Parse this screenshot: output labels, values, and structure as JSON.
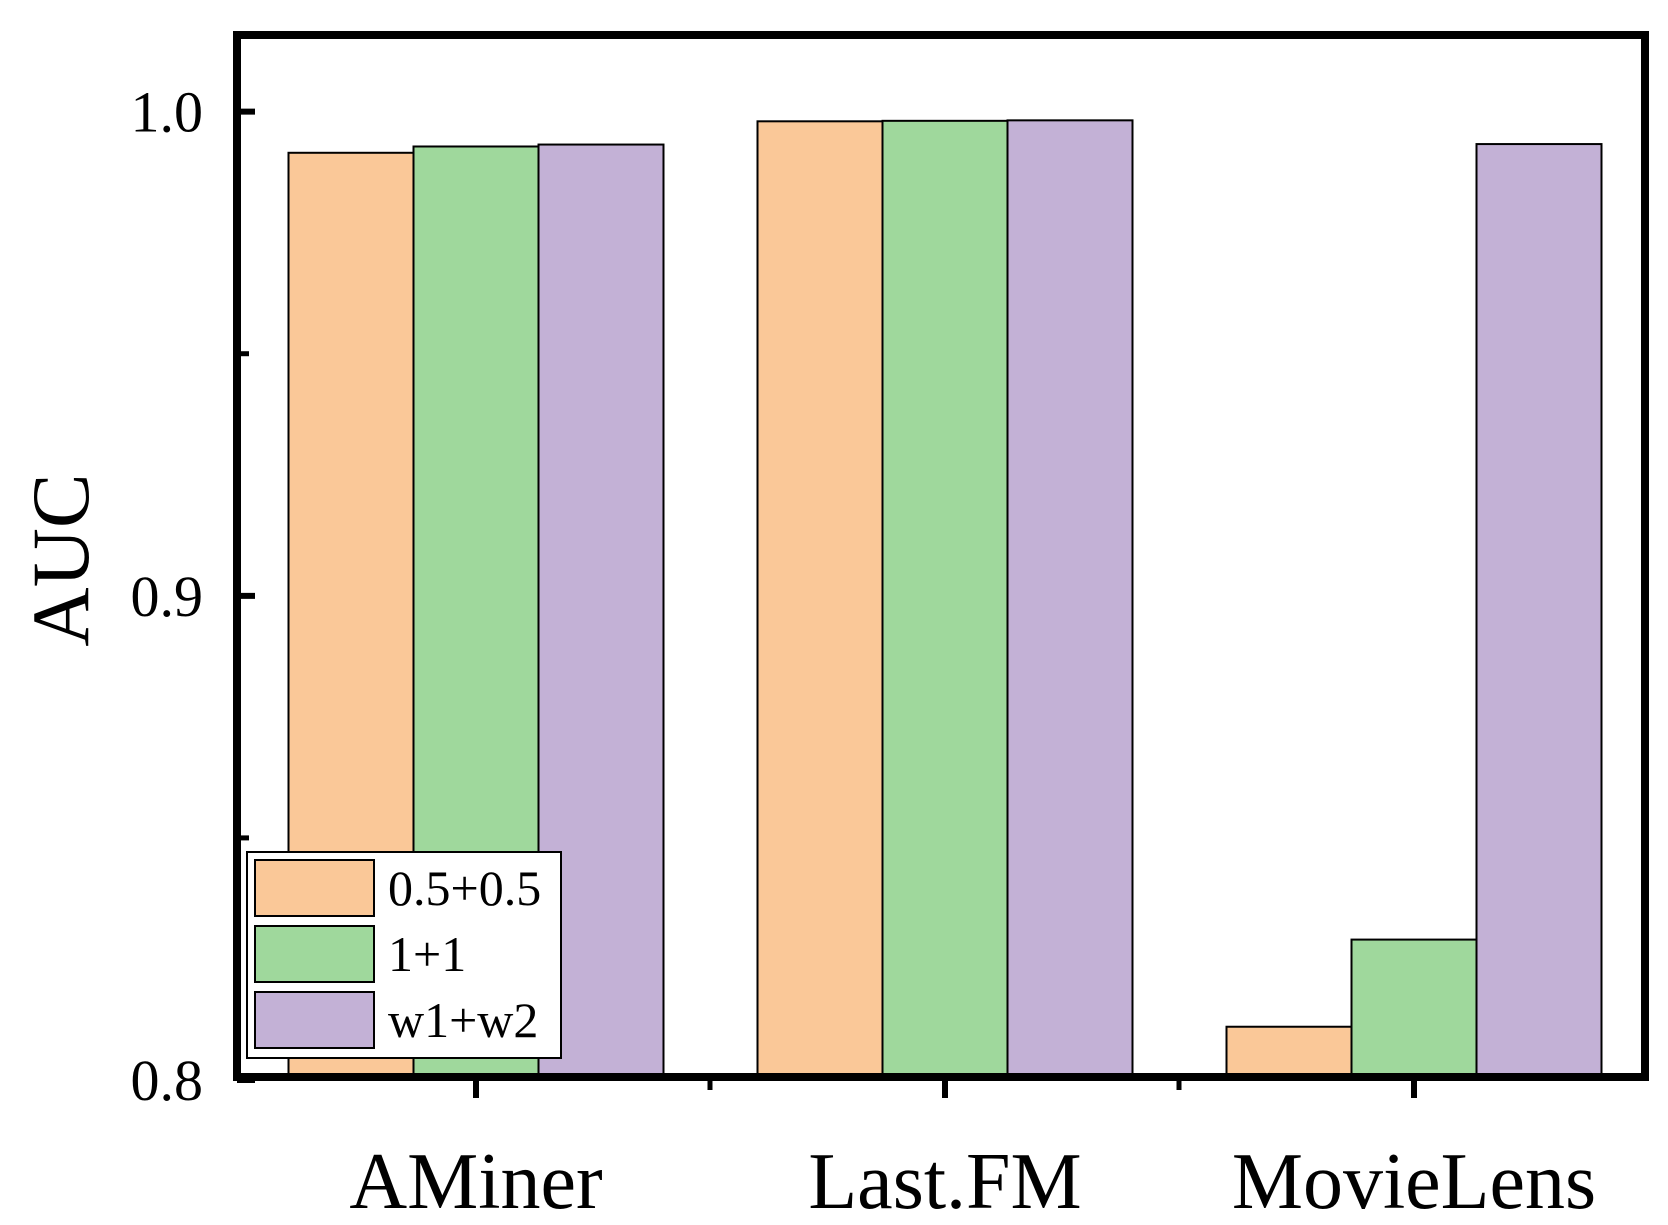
{
  "chart_data": {
    "type": "bar",
    "title": "",
    "xlabel": "",
    "ylabel": "AUC",
    "ylim": [
      0.8,
      1.015
    ],
    "yticks": [
      {
        "value": 0.8,
        "label": "0.8"
      },
      {
        "value": 0.9,
        "label": "0.9"
      },
      {
        "value": 1.0,
        "label": "1.0"
      }
    ],
    "minor_yticks": [
      0.85,
      0.95
    ],
    "categories": [
      "AMiner",
      "Last.FM",
      "MovieLens"
    ],
    "series": [
      {
        "name": "0.5+0.5",
        "color": "#FAC898",
        "values": [
          0.9915,
          0.998,
          0.811
        ]
      },
      {
        "name": "1+1",
        "color": "#9FD89C",
        "values": [
          0.9928,
          0.9981,
          0.829
        ]
      },
      {
        "name": "w1+w2",
        "color": "#C3B1D6",
        "values": [
          0.9932,
          0.9982,
          0.9933
        ]
      }
    ],
    "legend_position": "bottom-left",
    "grid": false
  }
}
